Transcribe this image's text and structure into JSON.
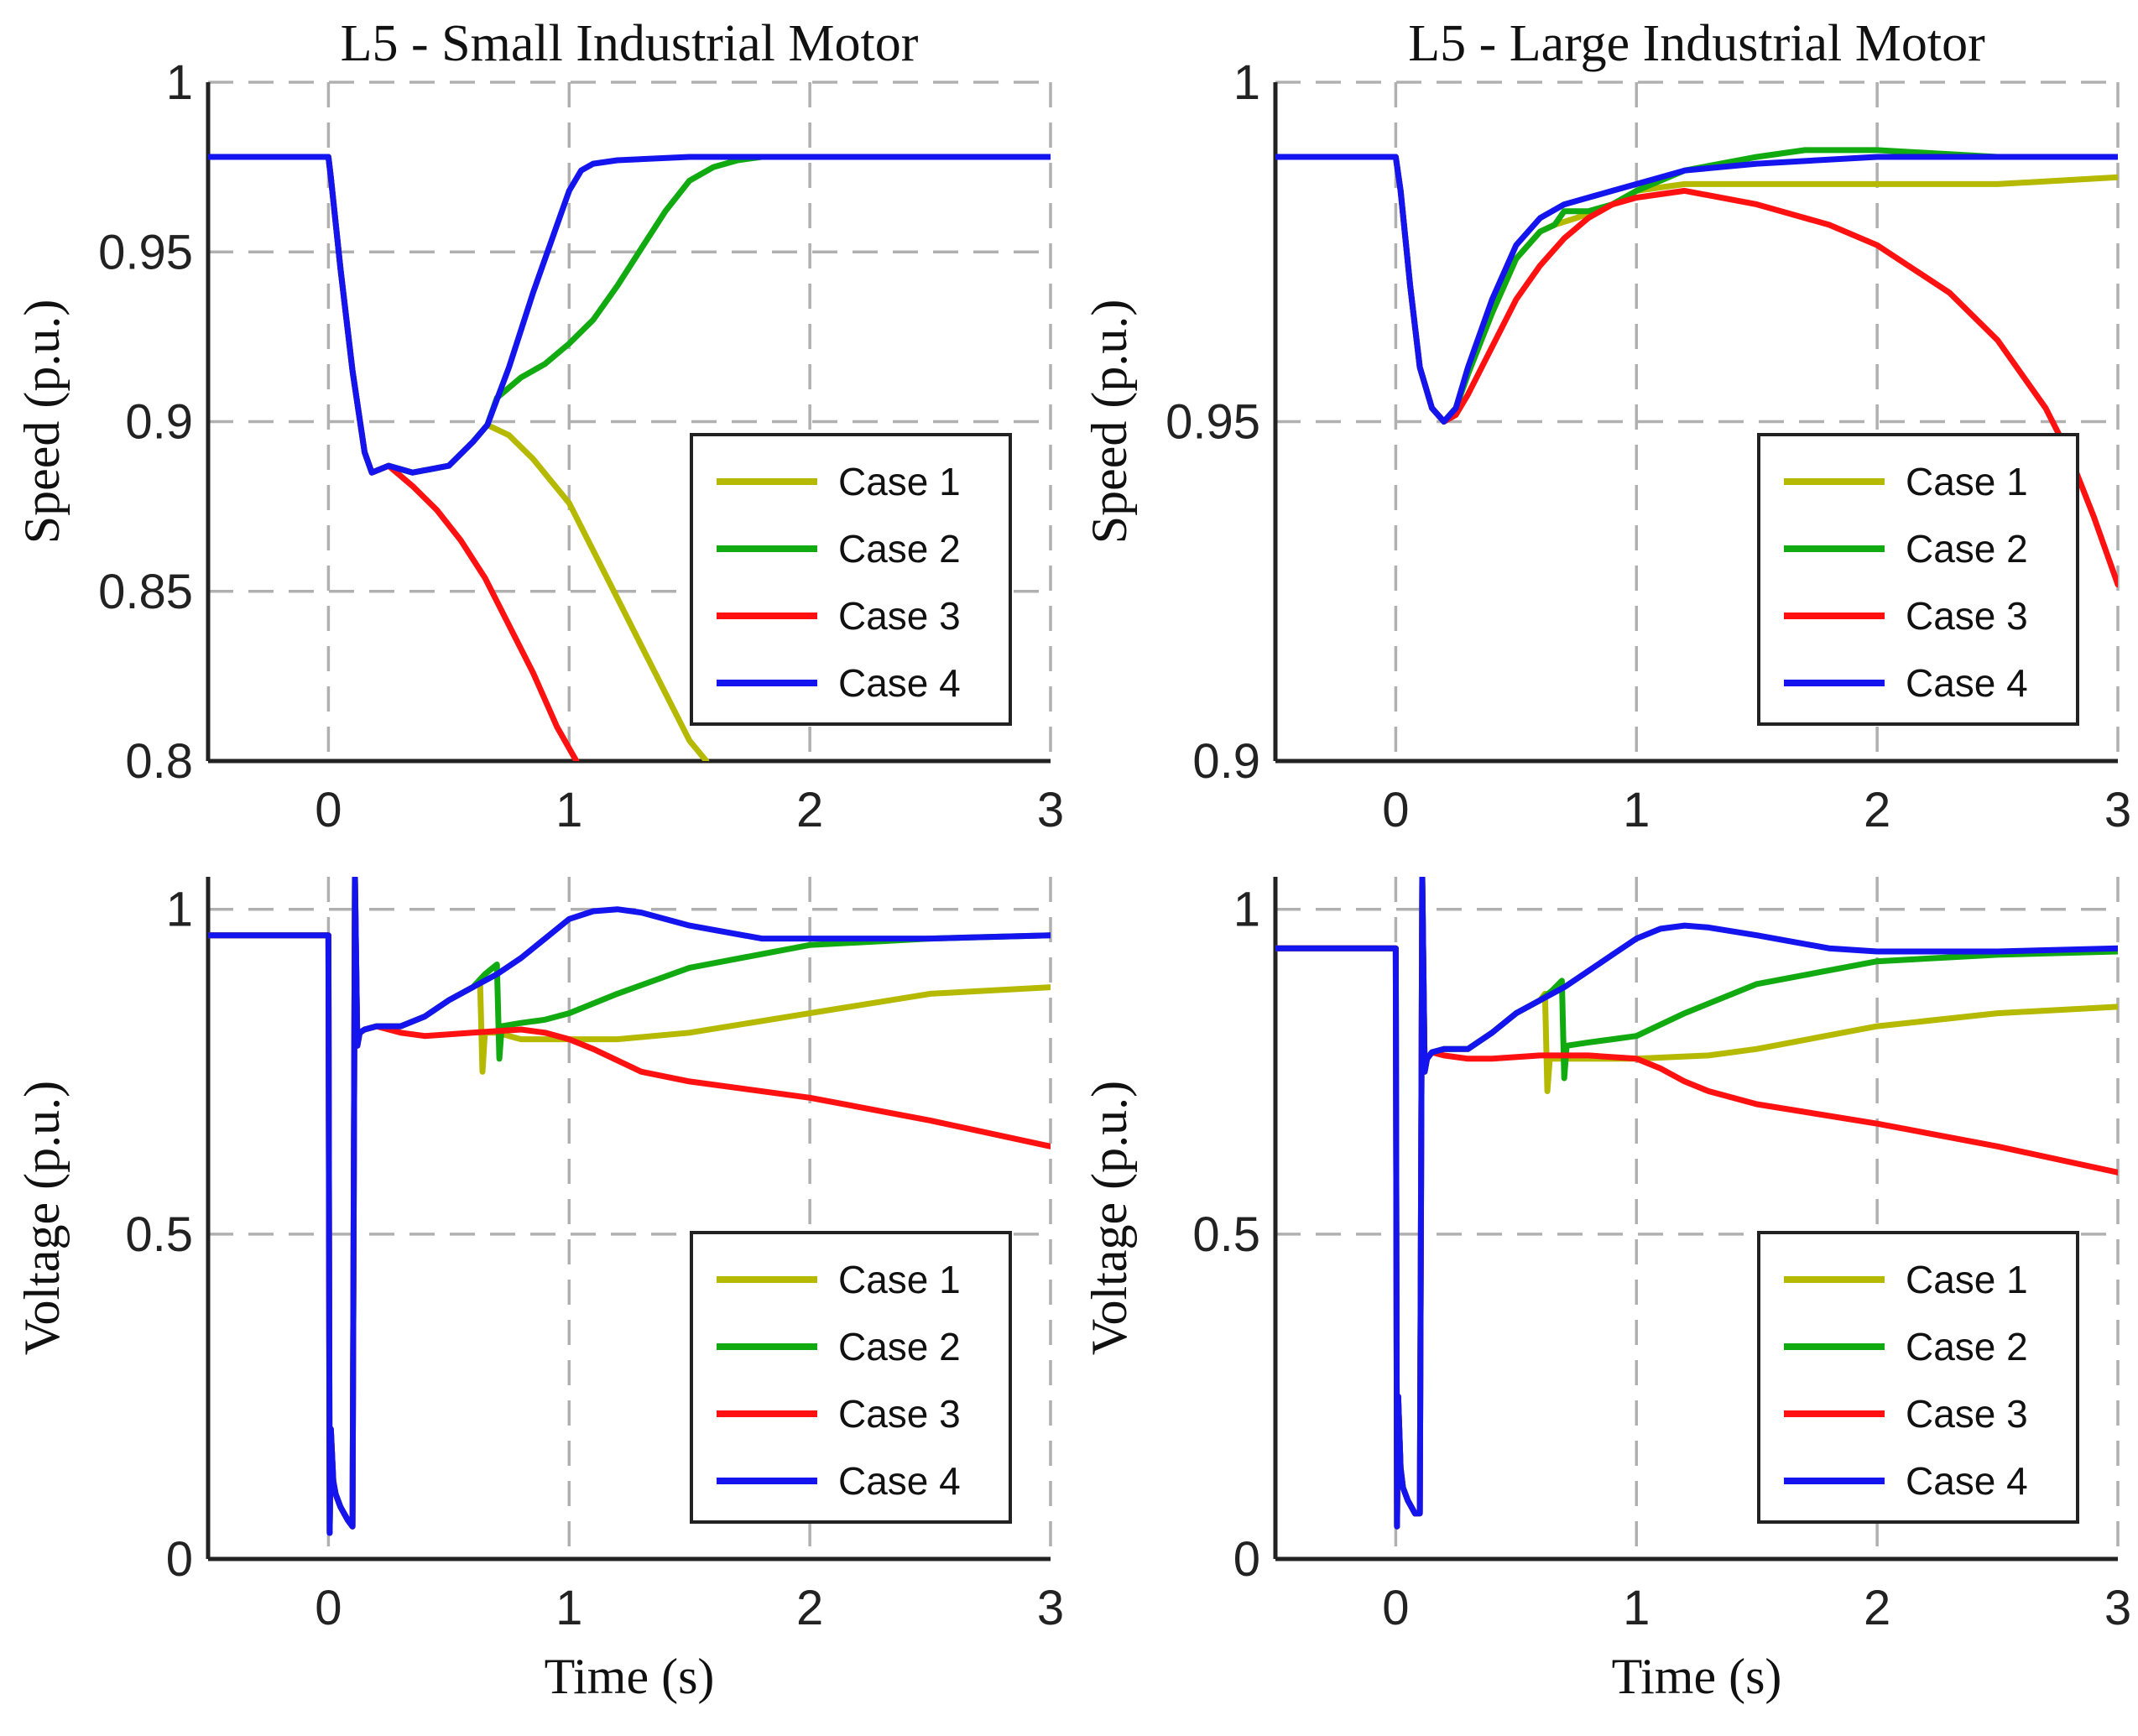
{
  "chart_data": [
    {
      "type": "line",
      "title": "L5 - Small Industrial Motor",
      "xlabel": "",
      "ylabel": "Speed (p.u.)",
      "xlim": [
        -0.5,
        3
      ],
      "ylim": [
        0.8,
        1
      ],
      "xticks": [
        0,
        1,
        2,
        3
      ],
      "xtick_labels": [
        "0",
        "1",
        "2",
        "3"
      ],
      "yticks": [
        0.8,
        0.85,
        0.9,
        0.95,
        1
      ],
      "ytick_labels": [
        "0.8",
        "0.85",
        "0.9",
        "0.95",
        "1"
      ],
      "grid": true,
      "legend_position": "bottom-right",
      "series": [
        {
          "name": "Case 1",
          "color": "#b5b900",
          "x": [
            -0.5,
            0,
            0.01,
            0.05,
            0.1,
            0.15,
            0.18,
            0.25,
            0.35,
            0.5,
            0.6,
            0.66,
            0.75,
            0.85,
            1.0,
            1.1,
            1.2,
            1.3,
            1.4,
            1.5,
            1.57
          ],
          "y": [
            0.978,
            0.978,
            0.972,
            0.945,
            0.915,
            0.891,
            0.885,
            0.887,
            0.885,
            0.887,
            0.894,
            0.899,
            0.896,
            0.889,
            0.876,
            0.862,
            0.848,
            0.834,
            0.82,
            0.806,
            0.8
          ]
        },
        {
          "name": "Case 2",
          "color": "#11aa11",
          "x": [
            -0.5,
            0,
            0.01,
            0.05,
            0.1,
            0.15,
            0.18,
            0.25,
            0.35,
            0.5,
            0.6,
            0.66,
            0.7,
            0.8,
            0.9,
            1.0,
            1.1,
            1.2,
            1.3,
            1.4,
            1.5,
            1.6,
            1.7,
            1.8,
            1.9,
            2.0,
            2.5,
            3.0
          ],
          "y": [
            0.978,
            0.978,
            0.972,
            0.945,
            0.915,
            0.891,
            0.885,
            0.887,
            0.885,
            0.887,
            0.894,
            0.899,
            0.907,
            0.913,
            0.917,
            0.923,
            0.93,
            0.94,
            0.951,
            0.962,
            0.971,
            0.975,
            0.977,
            0.978,
            0.978,
            0.978,
            0.978,
            0.978
          ]
        },
        {
          "name": "Case 3",
          "color": "#ff1111",
          "x": [
            -0.5,
            0,
            0.01,
            0.05,
            0.1,
            0.15,
            0.18,
            0.25,
            0.35,
            0.45,
            0.55,
            0.65,
            0.75,
            0.85,
            0.95,
            1.03
          ],
          "y": [
            0.978,
            0.978,
            0.972,
            0.945,
            0.915,
            0.891,
            0.885,
            0.887,
            0.881,
            0.874,
            0.865,
            0.854,
            0.84,
            0.826,
            0.81,
            0.8
          ]
        },
        {
          "name": "Case 4",
          "color": "#1414ee",
          "x": [
            -0.5,
            0,
            0.01,
            0.05,
            0.1,
            0.15,
            0.18,
            0.25,
            0.35,
            0.5,
            0.6,
            0.66,
            0.75,
            0.85,
            0.95,
            1.0,
            1.05,
            1.1,
            1.2,
            1.5,
            2.0,
            3.0
          ],
          "y": [
            0.978,
            0.978,
            0.972,
            0.945,
            0.915,
            0.891,
            0.885,
            0.887,
            0.885,
            0.887,
            0.894,
            0.899,
            0.916,
            0.938,
            0.958,
            0.968,
            0.974,
            0.976,
            0.977,
            0.978,
            0.978,
            0.978
          ]
        }
      ],
      "legend": [
        "Case 1",
        "Case 2",
        "Case 3",
        "Case 4"
      ]
    },
    {
      "type": "line",
      "title": "L5 - Large Industrial Motor",
      "xlabel": "",
      "ylabel": "Speed (p.u.)",
      "xlim": [
        -0.5,
        3
      ],
      "ylim": [
        0.9,
        1
      ],
      "xticks": [
        0,
        1,
        2,
        3
      ],
      "xtick_labels": [
        "0",
        "1",
        "2",
        "3"
      ],
      "yticks": [
        0.9,
        0.95,
        1
      ],
      "ytick_labels": [
        "0.9",
        "0.95",
        "1"
      ],
      "grid": true,
      "legend_position": "bottom-right",
      "series": [
        {
          "name": "Case 1",
          "color": "#b5b900",
          "x": [
            -0.5,
            0,
            0.02,
            0.06,
            0.1,
            0.15,
            0.2,
            0.25,
            0.3,
            0.4,
            0.5,
            0.6,
            0.66,
            0.75,
            0.9,
            1.0,
            1.2,
            1.5,
            2.0,
            2.5,
            3.0
          ],
          "y": [
            0.989,
            0.989,
            0.984,
            0.97,
            0.958,
            0.952,
            0.95,
            0.952,
            0.957,
            0.966,
            0.974,
            0.978,
            0.979,
            0.98,
            0.982,
            0.984,
            0.985,
            0.985,
            0.985,
            0.985,
            0.986
          ]
        },
        {
          "name": "Case 2",
          "color": "#11aa11",
          "x": [
            -0.5,
            0,
            0.02,
            0.06,
            0.1,
            0.15,
            0.2,
            0.25,
            0.3,
            0.4,
            0.5,
            0.6,
            0.66,
            0.7,
            0.8,
            0.9,
            1.0,
            1.2,
            1.5,
            1.7,
            2.0,
            2.5,
            3.0
          ],
          "y": [
            0.989,
            0.989,
            0.984,
            0.97,
            0.958,
            0.952,
            0.95,
            0.952,
            0.957,
            0.966,
            0.974,
            0.978,
            0.979,
            0.981,
            0.981,
            0.982,
            0.984,
            0.987,
            0.989,
            0.99,
            0.99,
            0.989,
            0.989
          ]
        },
        {
          "name": "Case 3",
          "color": "#ff1111",
          "x": [
            -0.5,
            0,
            0.02,
            0.06,
            0.1,
            0.15,
            0.2,
            0.25,
            0.3,
            0.4,
            0.5,
            0.6,
            0.7,
            0.8,
            0.9,
            1.0,
            1.2,
            1.5,
            1.8,
            2.0,
            2.3,
            2.5,
            2.7,
            2.8,
            2.9,
            3.0
          ],
          "y": [
            0.989,
            0.989,
            0.984,
            0.97,
            0.958,
            0.952,
            0.95,
            0.951,
            0.954,
            0.961,
            0.968,
            0.973,
            0.977,
            0.98,
            0.982,
            0.983,
            0.984,
            0.982,
            0.979,
            0.976,
            0.969,
            0.962,
            0.952,
            0.945,
            0.936,
            0.926
          ]
        },
        {
          "name": "Case 4",
          "color": "#1414ee",
          "x": [
            -0.5,
            0,
            0.02,
            0.06,
            0.1,
            0.15,
            0.2,
            0.25,
            0.3,
            0.4,
            0.5,
            0.6,
            0.7,
            0.8,
            0.9,
            1.0,
            1.2,
            1.5,
            2.0,
            2.5,
            3.0
          ],
          "y": [
            0.989,
            0.989,
            0.984,
            0.97,
            0.958,
            0.952,
            0.95,
            0.952,
            0.958,
            0.968,
            0.976,
            0.98,
            0.982,
            0.983,
            0.984,
            0.985,
            0.987,
            0.988,
            0.989,
            0.989,
            0.989
          ]
        }
      ],
      "legend": [
        "Case 1",
        "Case 2",
        "Case 3",
        "Case 4"
      ]
    },
    {
      "type": "line",
      "title": "",
      "xlabel": "Time (s)",
      "ylabel": "Voltage (p.u.)",
      "xlim": [
        -0.5,
        3
      ],
      "ylim": [
        0,
        1.05
      ],
      "xticks": [
        0,
        1,
        2,
        3
      ],
      "xtick_labels": [
        "0",
        "1",
        "2",
        "3"
      ],
      "yticks": [
        0,
        0.5,
        1
      ],
      "ytick_labels": [
        "0",
        "0.5",
        "1"
      ],
      "grid": true,
      "legend_position": "bottom-right",
      "series": [
        {
          "name": "Case 1",
          "color": "#b5b900",
          "x": [
            -0.5,
            0,
            0.005,
            0.01,
            0.02,
            0.03,
            0.05,
            0.08,
            0.1,
            0.11,
            0.12,
            0.13,
            0.15,
            0.2,
            0.3,
            0.4,
            0.5,
            0.6,
            0.63,
            0.64,
            0.65,
            0.7,
            0.8,
            0.9,
            1.0,
            1.2,
            1.5,
            2.0,
            2.5,
            3.0
          ],
          "y": [
            0.96,
            0.96,
            0.04,
            0.2,
            0.12,
            0.1,
            0.08,
            0.06,
            0.05,
            1.05,
            0.79,
            0.81,
            0.815,
            0.82,
            0.82,
            0.835,
            0.86,
            0.88,
            0.89,
            0.75,
            0.81,
            0.81,
            0.8,
            0.8,
            0.8,
            0.8,
            0.81,
            0.84,
            0.87,
            0.88
          ]
        },
        {
          "name": "Case 2",
          "color": "#11aa11",
          "x": [
            -0.5,
            0,
            0.005,
            0.01,
            0.02,
            0.03,
            0.05,
            0.08,
            0.1,
            0.11,
            0.12,
            0.13,
            0.15,
            0.2,
            0.3,
            0.4,
            0.5,
            0.6,
            0.65,
            0.7,
            0.71,
            0.72,
            0.8,
            0.9,
            1.0,
            1.2,
            1.5,
            2.0,
            2.5,
            3.0
          ],
          "y": [
            0.96,
            0.96,
            0.04,
            0.2,
            0.12,
            0.1,
            0.08,
            0.06,
            0.05,
            1.05,
            0.79,
            0.81,
            0.815,
            0.82,
            0.82,
            0.835,
            0.86,
            0.88,
            0.9,
            0.915,
            0.77,
            0.82,
            0.825,
            0.83,
            0.84,
            0.87,
            0.91,
            0.945,
            0.955,
            0.96
          ]
        },
        {
          "name": "Case 3",
          "color": "#ff1111",
          "x": [
            -0.5,
            0,
            0.005,
            0.01,
            0.02,
            0.03,
            0.05,
            0.08,
            0.1,
            0.11,
            0.12,
            0.13,
            0.15,
            0.2,
            0.3,
            0.4,
            0.6,
            0.8,
            0.9,
            1.0,
            1.1,
            1.3,
            1.5,
            2.0,
            2.5,
            3.0
          ],
          "y": [
            0.96,
            0.96,
            0.04,
            0.2,
            0.12,
            0.1,
            0.08,
            0.06,
            0.05,
            1.05,
            0.79,
            0.81,
            0.815,
            0.82,
            0.81,
            0.805,
            0.81,
            0.815,
            0.81,
            0.8,
            0.785,
            0.75,
            0.735,
            0.71,
            0.675,
            0.635
          ]
        },
        {
          "name": "Case 4",
          "color": "#1414ee",
          "x": [
            -0.5,
            0,
            0.005,
            0.01,
            0.02,
            0.03,
            0.05,
            0.08,
            0.1,
            0.11,
            0.12,
            0.13,
            0.15,
            0.2,
            0.3,
            0.4,
            0.5,
            0.6,
            0.7,
            0.8,
            0.9,
            1.0,
            1.1,
            1.2,
            1.3,
            1.5,
            1.8,
            2.0,
            2.5,
            3.0
          ],
          "y": [
            0.96,
            0.96,
            0.04,
            0.2,
            0.12,
            0.1,
            0.08,
            0.06,
            0.05,
            1.05,
            0.79,
            0.81,
            0.815,
            0.82,
            0.82,
            0.835,
            0.86,
            0.88,
            0.9,
            0.925,
            0.955,
            0.985,
            0.997,
            1.0,
            0.995,
            0.975,
            0.955,
            0.955,
            0.955,
            0.96
          ]
        }
      ],
      "legend": [
        "Case 1",
        "Case 2",
        "Case 3",
        "Case 4"
      ]
    },
    {
      "type": "line",
      "title": "",
      "xlabel": "Time (s)",
      "ylabel": "Voltage (p.u.)",
      "xlim": [
        -0.5,
        3
      ],
      "ylim": [
        0,
        1.05
      ],
      "xticks": [
        0,
        1,
        2,
        3
      ],
      "xtick_labels": [
        "0",
        "1",
        "2",
        "3"
      ],
      "yticks": [
        0,
        0.5,
        1
      ],
      "ytick_labels": [
        "0",
        "0.5",
        "1"
      ],
      "grid": true,
      "legend_position": "bottom-right",
      "series": [
        {
          "name": "Case 1",
          "color": "#b5b900",
          "x": [
            -0.5,
            0,
            0.005,
            0.01,
            0.02,
            0.03,
            0.05,
            0.08,
            0.1,
            0.11,
            0.12,
            0.13,
            0.15,
            0.2,
            0.3,
            0.4,
            0.5,
            0.6,
            0.62,
            0.63,
            0.64,
            0.7,
            0.8,
            1.0,
            1.3,
            1.5,
            2.0,
            2.5,
            3.0
          ],
          "y": [
            0.94,
            0.94,
            0.05,
            0.25,
            0.14,
            0.11,
            0.09,
            0.07,
            0.07,
            1.05,
            0.75,
            0.77,
            0.78,
            0.785,
            0.785,
            0.81,
            0.84,
            0.86,
            0.87,
            0.72,
            0.77,
            0.77,
            0.77,
            0.77,
            0.775,
            0.785,
            0.82,
            0.84,
            0.85
          ]
        },
        {
          "name": "Case 2",
          "color": "#11aa11",
          "x": [
            -0.5,
            0,
            0.005,
            0.01,
            0.02,
            0.03,
            0.05,
            0.08,
            0.1,
            0.11,
            0.12,
            0.13,
            0.15,
            0.2,
            0.3,
            0.4,
            0.5,
            0.6,
            0.65,
            0.69,
            0.7,
            0.71,
            0.8,
            0.9,
            1.0,
            1.2,
            1.5,
            2.0,
            2.5,
            3.0
          ],
          "y": [
            0.94,
            0.94,
            0.05,
            0.25,
            0.14,
            0.11,
            0.09,
            0.07,
            0.07,
            1.05,
            0.75,
            0.77,
            0.78,
            0.785,
            0.785,
            0.81,
            0.84,
            0.86,
            0.875,
            0.89,
            0.74,
            0.79,
            0.795,
            0.8,
            0.805,
            0.84,
            0.885,
            0.92,
            0.93,
            0.935
          ]
        },
        {
          "name": "Case 3",
          "color": "#ff1111",
          "x": [
            -0.5,
            0,
            0.005,
            0.01,
            0.02,
            0.03,
            0.05,
            0.08,
            0.1,
            0.11,
            0.12,
            0.13,
            0.15,
            0.2,
            0.3,
            0.4,
            0.6,
            0.8,
            1.0,
            1.1,
            1.2,
            1.3,
            1.5,
            2.0,
            2.5,
            3.0
          ],
          "y": [
            0.94,
            0.94,
            0.05,
            0.25,
            0.14,
            0.11,
            0.09,
            0.07,
            0.07,
            1.05,
            0.75,
            0.77,
            0.78,
            0.775,
            0.77,
            0.77,
            0.775,
            0.775,
            0.77,
            0.755,
            0.735,
            0.72,
            0.7,
            0.67,
            0.635,
            0.595
          ]
        },
        {
          "name": "Case 4",
          "color": "#1414ee",
          "x": [
            -0.5,
            0,
            0.005,
            0.01,
            0.02,
            0.03,
            0.05,
            0.08,
            0.1,
            0.11,
            0.12,
            0.13,
            0.15,
            0.2,
            0.3,
            0.4,
            0.5,
            0.6,
            0.7,
            0.8,
            0.9,
            1.0,
            1.1,
            1.2,
            1.3,
            1.5,
            1.8,
            2.0,
            2.5,
            3.0
          ],
          "y": [
            0.94,
            0.94,
            0.05,
            0.25,
            0.14,
            0.11,
            0.09,
            0.07,
            0.07,
            1.05,
            0.75,
            0.77,
            0.78,
            0.785,
            0.785,
            0.81,
            0.84,
            0.86,
            0.88,
            0.905,
            0.93,
            0.955,
            0.97,
            0.975,
            0.972,
            0.96,
            0.94,
            0.935,
            0.935,
            0.94
          ]
        }
      ],
      "legend": [
        "Case 1",
        "Case 2",
        "Case 3",
        "Case 4"
      ]
    }
  ]
}
